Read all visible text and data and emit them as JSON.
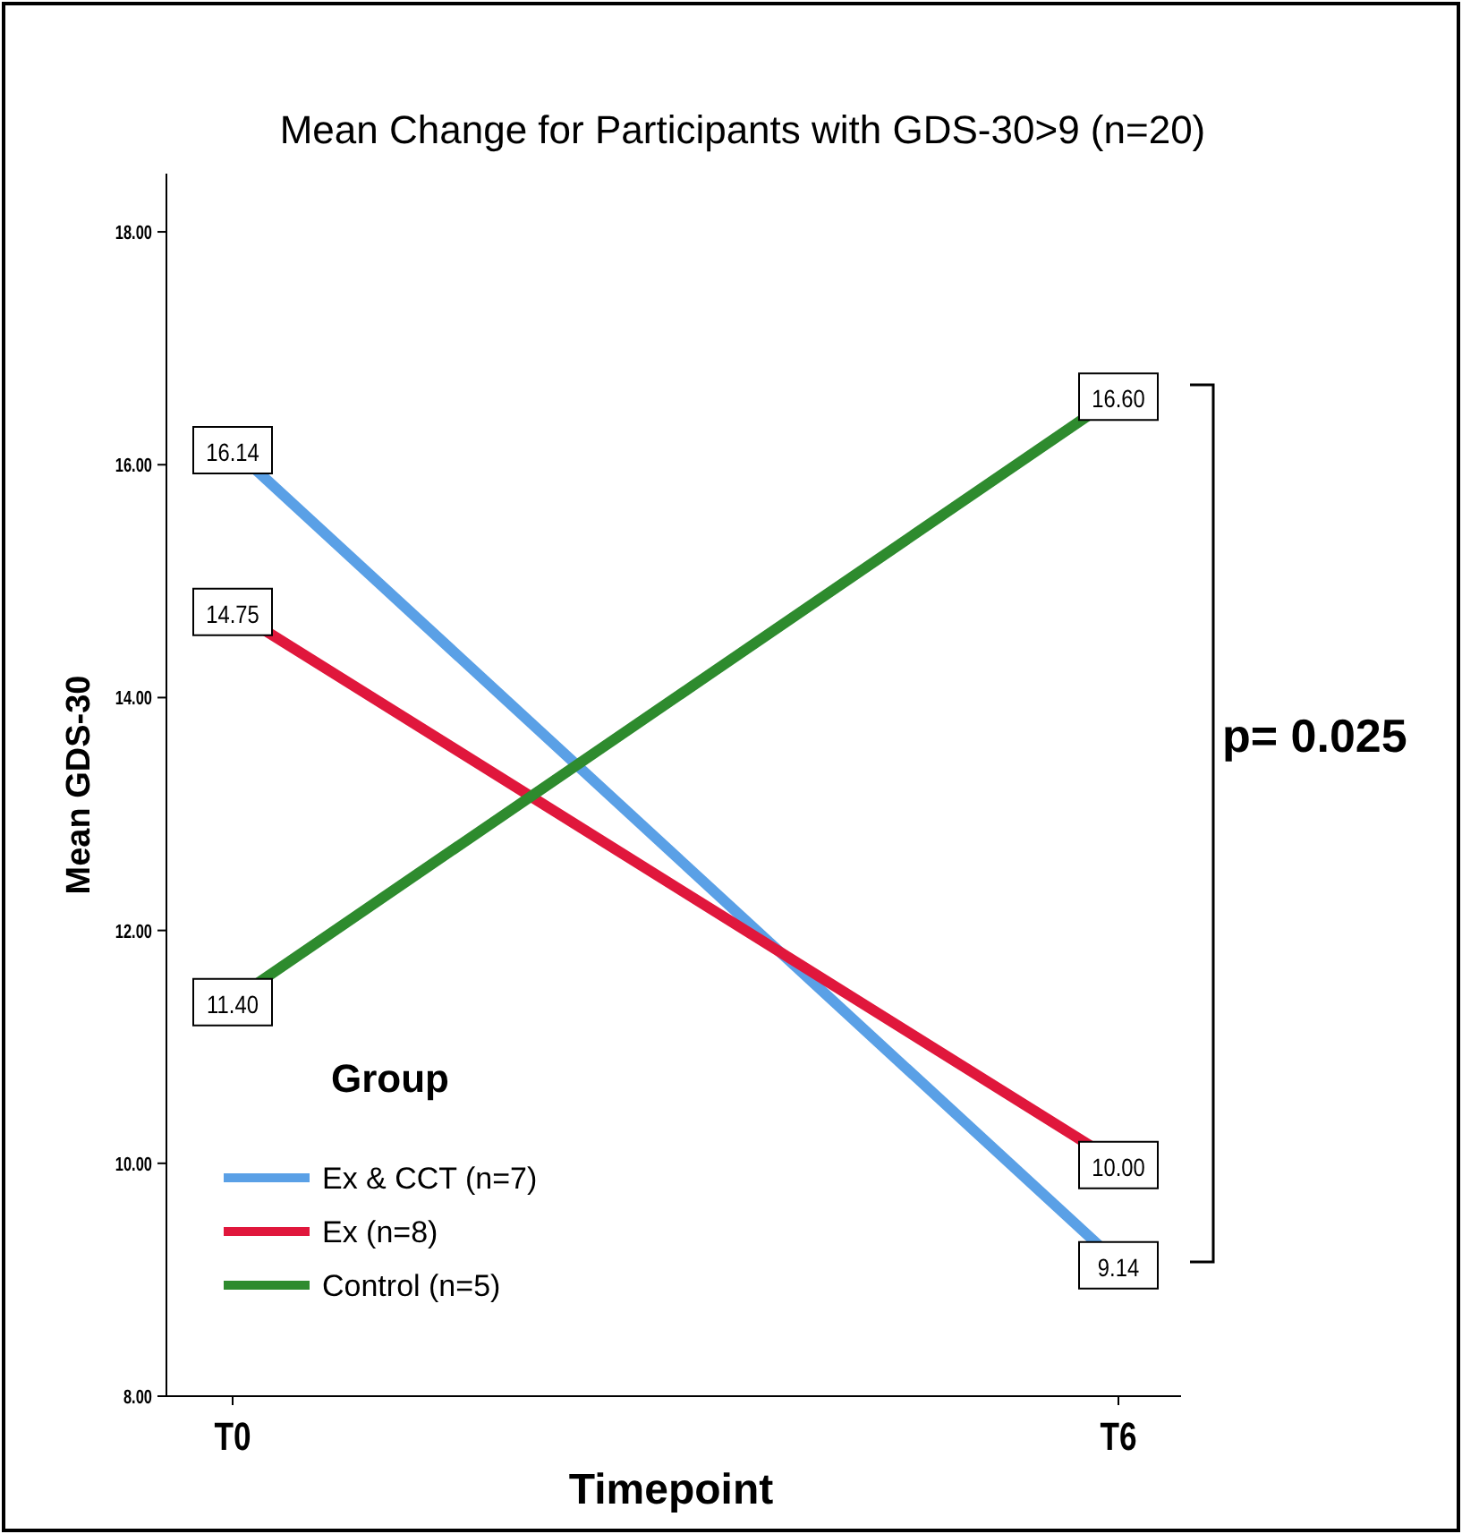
{
  "chart_data": {
    "type": "line",
    "title": "Mean Change for Participants with GDS-30>9 (n=20)",
    "xlabel": "Timepoint",
    "ylabel": "Mean GDS-30",
    "legend_title": "Group",
    "categories": [
      "T0",
      "T6"
    ],
    "series": [
      {
        "name": "Ex & CCT (n=7)",
        "color": "#5aa0e6",
        "values": [
          16.14,
          9.14
        ],
        "value_labels": [
          "16.14",
          "9.14"
        ]
      },
      {
        "name": "Ex (n=8)",
        "color": "#e0173c",
        "values": [
          14.75,
          10.0
        ],
        "value_labels": [
          "14.75",
          "10.00"
        ]
      },
      {
        "name": "Control (n=5)",
        "color": "#2e8b2e",
        "values": [
          11.4,
          16.6
        ],
        "value_labels": [
          "11.40",
          "16.60"
        ]
      }
    ],
    "ylim": [
      8,
      18.5
    ],
    "yticks": [
      {
        "value": 8,
        "label": "8.00"
      },
      {
        "value": 10,
        "label": "10.00"
      },
      {
        "value": 12,
        "label": "12.00"
      },
      {
        "value": 14,
        "label": "14.00"
      },
      {
        "value": 16,
        "label": "16.00"
      },
      {
        "value": 18,
        "label": "18.00"
      }
    ],
    "grid": false,
    "legend": "bottom left",
    "marker": "square",
    "line_style": "solid",
    "annotations": [
      "p= 0.025"
    ]
  }
}
